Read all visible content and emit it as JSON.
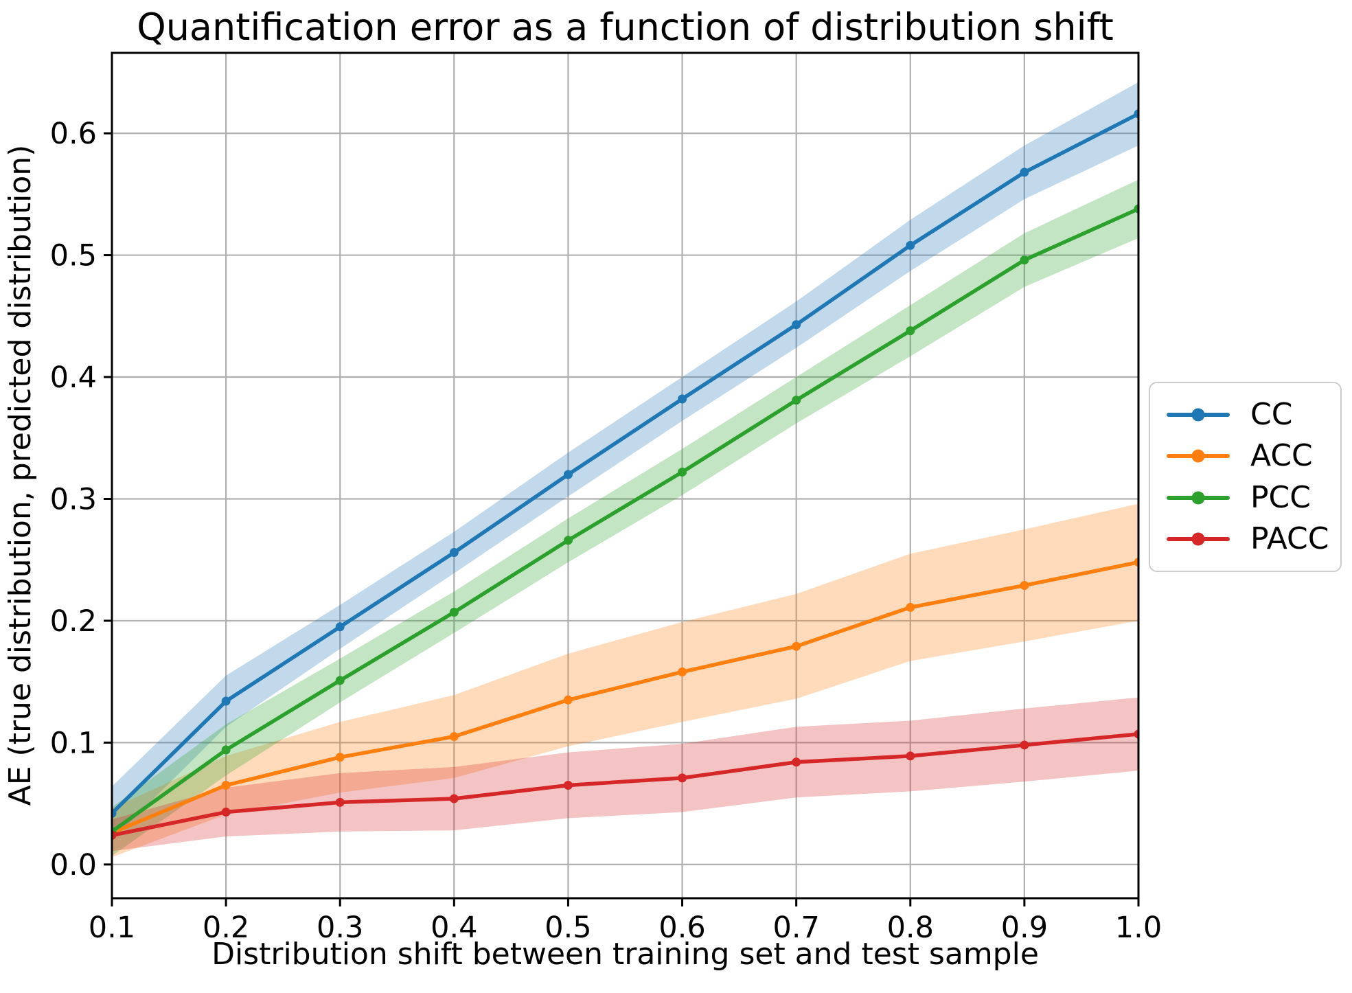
{
  "figure": {
    "background": "#ffffff",
    "grid_color": "#b0b0b0",
    "spine_color": "#000000",
    "legend_border_color": "#cccccc"
  },
  "chart_data": {
    "type": "line",
    "title": "Quantification error as a function of distribution shift",
    "xlabel": "Distribution shift between training set and test sample",
    "ylabel": "AE (true distribution, predicted distribution)",
    "x": [
      0.1,
      0.2,
      0.3,
      0.4,
      0.5,
      0.6,
      0.7,
      0.8,
      0.9,
      1.0
    ],
    "xticks": [
      "0.1",
      "0.2",
      "0.3",
      "0.4",
      "0.5",
      "0.6",
      "0.7",
      "0.8",
      "0.9",
      "1.0"
    ],
    "ytick_values": [
      0.0,
      0.1,
      0.2,
      0.3,
      0.4,
      0.5,
      0.6
    ],
    "yticks": [
      "0.0",
      "0.1",
      "0.2",
      "0.3",
      "0.4",
      "0.5",
      "0.6"
    ],
    "xlim": [
      0.1,
      1.0
    ],
    "ylim": [
      -0.0277,
      0.666
    ],
    "grid": true,
    "legend_position": "outside-right",
    "band_alpha": 0.28,
    "marker": "circle",
    "series": [
      {
        "name": "CC",
        "color": "#1f77b4",
        "values": [
          0.042,
          0.134,
          0.195,
          0.256,
          0.32,
          0.382,
          0.443,
          0.508,
          0.568,
          0.616
        ],
        "band_halfwidth": [
          0.022,
          0.021,
          0.018,
          0.017,
          0.018,
          0.018,
          0.019,
          0.021,
          0.022,
          0.026
        ]
      },
      {
        "name": "ACC",
        "color": "#ff7f0e",
        "values": [
          0.026,
          0.065,
          0.088,
          0.105,
          0.135,
          0.158,
          0.179,
          0.211,
          0.229,
          0.248
        ],
        "band_halfwidth": [
          0.02,
          0.024,
          0.029,
          0.034,
          0.038,
          0.041,
          0.043,
          0.044,
          0.046,
          0.048
        ]
      },
      {
        "name": "PCC",
        "color": "#2ca02c",
        "values": [
          0.027,
          0.094,
          0.151,
          0.207,
          0.266,
          0.322,
          0.381,
          0.438,
          0.496,
          0.538
        ],
        "band_halfwidth": [
          0.02,
          0.021,
          0.018,
          0.017,
          0.018,
          0.019,
          0.019,
          0.021,
          0.022,
          0.024
        ]
      },
      {
        "name": "PACC",
        "color": "#d62728",
        "values": [
          0.024,
          0.043,
          0.051,
          0.054,
          0.065,
          0.071,
          0.084,
          0.089,
          0.098,
          0.107
        ],
        "band_halfwidth": [
          0.013,
          0.02,
          0.024,
          0.026,
          0.027,
          0.028,
          0.029,
          0.029,
          0.03,
          0.03
        ]
      }
    ]
  }
}
